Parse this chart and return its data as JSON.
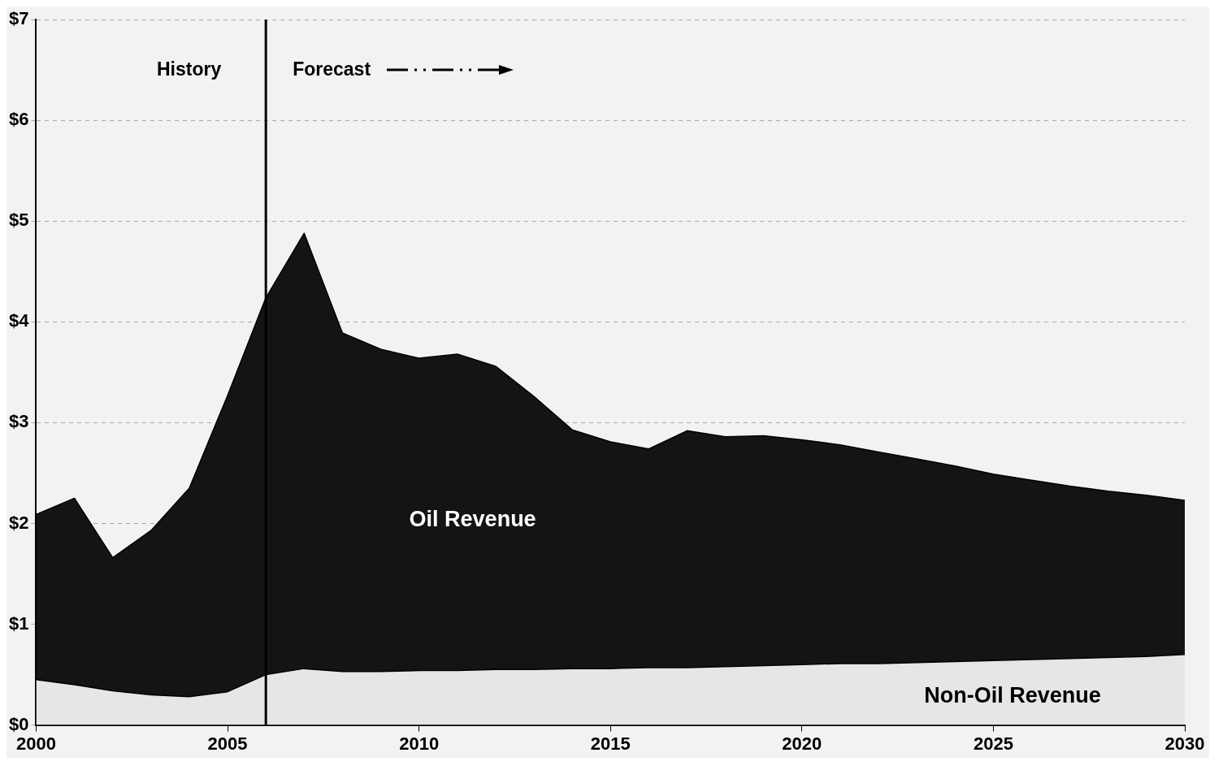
{
  "chart_data": {
    "type": "area",
    "stacked": true,
    "x": [
      2000,
      2001,
      2002,
      2003,
      2004,
      2005,
      2006,
      2007,
      2008,
      2009,
      2010,
      2011,
      2012,
      2013,
      2014,
      2015,
      2016,
      2017,
      2018,
      2019,
      2020,
      2021,
      2022,
      2023,
      2024,
      2025,
      2026,
      2027,
      2028,
      2029,
      2030
    ],
    "series": [
      {
        "name": "Non-Oil Revenue",
        "color": "#e6e6e6",
        "values": [
          0.45,
          0.4,
          0.34,
          0.3,
          0.28,
          0.33,
          0.5,
          0.56,
          0.53,
          0.53,
          0.54,
          0.54,
          0.55,
          0.55,
          0.56,
          0.56,
          0.57,
          0.57,
          0.58,
          0.59,
          0.6,
          0.61,
          0.61,
          0.62,
          0.63,
          0.64,
          0.65,
          0.66,
          0.67,
          0.68,
          0.7
        ]
      },
      {
        "name": "Oil Revenue",
        "color": "#141414",
        "values": [
          1.64,
          1.85,
          1.32,
          1.63,
          2.07,
          2.94,
          3.74,
          4.32,
          3.36,
          3.2,
          3.1,
          3.14,
          3.01,
          2.71,
          2.37,
          2.25,
          2.17,
          2.35,
          2.28,
          2.28,
          2.23,
          2.17,
          2.1,
          2.02,
          1.94,
          1.85,
          1.78,
          1.71,
          1.65,
          1.6,
          1.53
        ]
      }
    ],
    "xlim": [
      2000,
      2030
    ],
    "xticks": [
      2000,
      2005,
      2010,
      2015,
      2020,
      2025,
      2030
    ],
    "ylim": [
      0,
      7
    ],
    "yticks": [
      {
        "value": 0,
        "label": "$0"
      },
      {
        "value": 1,
        "label": "$1"
      },
      {
        "value": 2,
        "label": "$2"
      },
      {
        "value": 3,
        "label": "$3"
      },
      {
        "value": 4,
        "label": "$4"
      },
      {
        "value": 5,
        "label": "$5"
      },
      {
        "value": 6,
        "label": "$6"
      },
      {
        "value": 7,
        "label": "$7"
      }
    ],
    "grid": "y",
    "ref_lines": [
      {
        "axis": "x",
        "value": 2006,
        "color": "#000000"
      }
    ],
    "annotations": [
      "History",
      "Forecast"
    ]
  }
}
